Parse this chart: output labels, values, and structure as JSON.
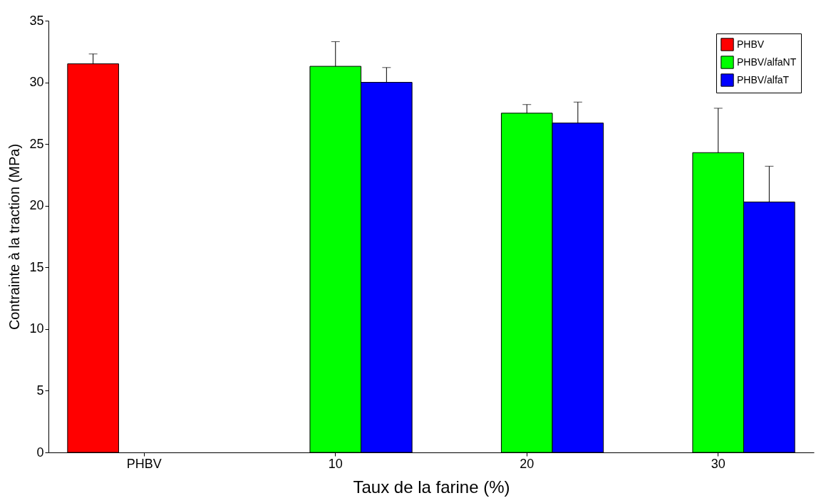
{
  "chart_data": {
    "type": "bar",
    "xlabel": "Taux de la farine (%)",
    "ylabel": "Contrainte à la traction (MPa)",
    "categories": [
      "PHBV",
      "10",
      "20",
      "30"
    ],
    "series": [
      {
        "name": "PHBV",
        "color": "#ff0000",
        "values": [
          31.5,
          null,
          null,
          null
        ],
        "errors": [
          [
            31.5,
            32.3
          ],
          null,
          null,
          null
        ]
      },
      {
        "name": "PHBV/alfaNT",
        "color": "#00ff00",
        "values": [
          null,
          31.3,
          27.5,
          24.3
        ],
        "errors": [
          null,
          [
            31.3,
            33.3
          ],
          [
            27.5,
            28.2
          ],
          [
            24.3,
            27.9
          ]
        ]
      },
      {
        "name": "PHBV/alfaT",
        "color": "#0000ff",
        "values": [
          null,
          30.0,
          26.7,
          20.3
        ],
        "errors": [
          null,
          [
            30.0,
            31.2
          ],
          [
            26.7,
            28.4
          ],
          [
            20.3,
            23.2
          ]
        ]
      }
    ],
    "ylim": [
      0,
      35
    ],
    "yticks": [
      0,
      5,
      10,
      15,
      20,
      25,
      30,
      35
    ],
    "grid": false,
    "legend": "top right"
  }
}
